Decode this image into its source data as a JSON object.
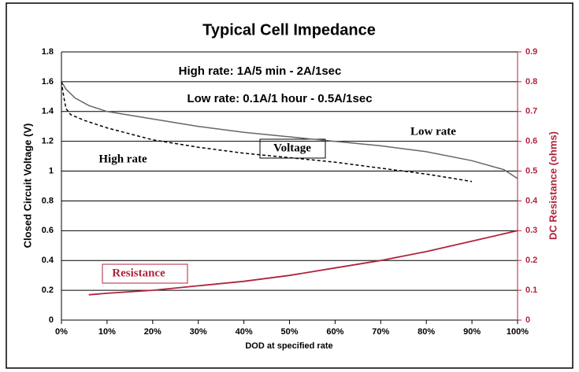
{
  "chart_data": {
    "type": "line",
    "title": "Typical Cell Impedance",
    "xlabel": "DOD at specified rate",
    "ylabel": "Closed Circuit Voltage (V)",
    "y2label": "DC Resistance (ohms)",
    "annotations": [
      "High rate: 1A/5 min - 2A/1sec",
      "Low rate: 0.1A/1 hour - 0.5A/1sec",
      "Voltage"
    ],
    "xlim": [
      0,
      100
    ],
    "xticks": [
      {
        "value": 0,
        "label": "0%"
      },
      {
        "value": 10,
        "label": "10%"
      },
      {
        "value": 20,
        "label": "20%"
      },
      {
        "value": 30,
        "label": "30%"
      },
      {
        "value": 40,
        "label": "40%"
      },
      {
        "value": 50,
        "label": "50%"
      },
      {
        "value": 60,
        "label": "60%"
      },
      {
        "value": 70,
        "label": "70%"
      },
      {
        "value": 80,
        "label": "80%"
      },
      {
        "value": 90,
        "label": "90%"
      },
      {
        "value": 100,
        "label": "100%"
      }
    ],
    "ylim": [
      0,
      1.8
    ],
    "yticks": [
      0,
      0.2,
      0.4,
      0.6,
      0.8,
      1,
      1.2,
      1.4,
      1.6,
      1.8
    ],
    "y2lim": [
      0,
      0.9
    ],
    "y2ticks": [
      0,
      0.1,
      0.2,
      0.3,
      0.4,
      0.5,
      0.6,
      0.7,
      0.8,
      0.9
    ],
    "grid": true,
    "series": [
      {
        "name": "Low rate",
        "color": "#666666",
        "dash": false,
        "x": [
          0,
          1,
          3,
          6,
          10,
          20,
          30,
          40,
          50,
          60,
          70,
          80,
          90,
          97,
          100
        ],
        "values": [
          1.6,
          1.55,
          1.49,
          1.44,
          1.4,
          1.35,
          1.3,
          1.26,
          1.23,
          1.2,
          1.17,
          1.13,
          1.07,
          1.01,
          0.95
        ]
      },
      {
        "name": "High rate",
        "color": "#000000",
        "dash": true,
        "x": [
          0,
          0.5,
          1,
          2,
          5,
          10,
          20,
          30,
          40,
          50,
          60,
          70,
          80,
          90
        ],
        "values": [
          1.6,
          1.5,
          1.42,
          1.38,
          1.34,
          1.29,
          1.21,
          1.16,
          1.12,
          1.09,
          1.06,
          1.02,
          0.98,
          0.93
        ]
      },
      {
        "name": "Resistance",
        "color": "#b0243c",
        "dash": false,
        "axis": "y2",
        "x": [
          6,
          10,
          20,
          30,
          40,
          50,
          60,
          70,
          80,
          90,
          100
        ],
        "values": [
          0.085,
          0.09,
          0.1,
          0.115,
          0.13,
          0.15,
          0.175,
          0.2,
          0.23,
          0.265,
          0.3
        ]
      }
    ]
  }
}
